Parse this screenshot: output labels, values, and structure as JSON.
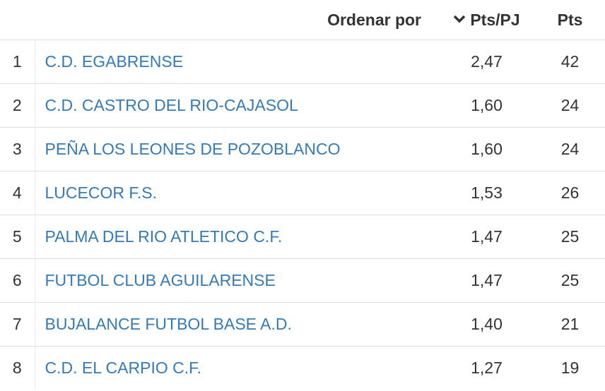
{
  "header": {
    "sort_label": "Ordenar por",
    "columns": [
      "Pts/PJ",
      "Pts"
    ]
  },
  "table": {
    "rows": [
      [
        1,
        "C.D. EGABRENSE",
        "2,47",
        42
      ],
      [
        2,
        "C.D. CASTRO DEL RIO-CAJASOL",
        "1,60",
        24
      ],
      [
        3,
        "PEÑA LOS LEONES DE POZOBLANCO",
        "1,60",
        24
      ],
      [
        4,
        "LUCECOR F.S.",
        "1,53",
        26
      ],
      [
        5,
        "PALMA DEL RIO ATLETICO C.F.",
        "1,47",
        25
      ],
      [
        6,
        "FUTBOL CLUB AGUILARENSE",
        "1,47",
        25
      ],
      [
        7,
        "BUJALANCE FUTBOL BASE A.D.",
        "1,40",
        21
      ],
      [
        8,
        "C.D. EL CARPIO C.F.",
        "1,27",
        19
      ]
    ]
  }
}
